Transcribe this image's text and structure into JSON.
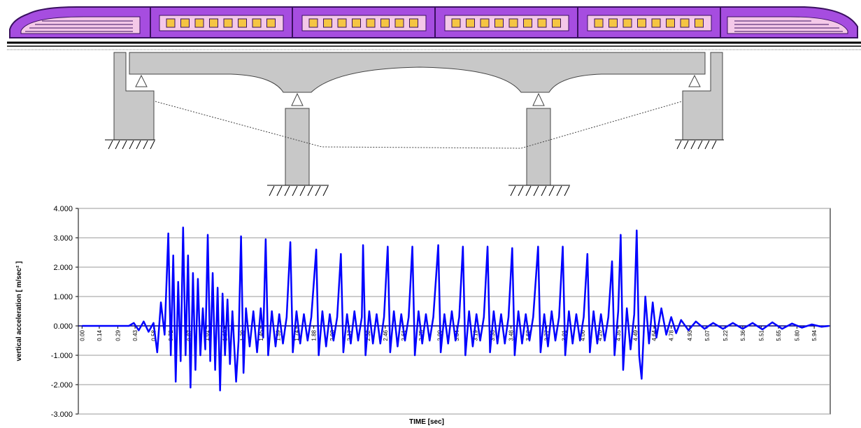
{
  "chart_data": {
    "type": "line",
    "x_label": "TIME [sec]",
    "y_label": "vertical acceleration [ m/sec² ]",
    "color": "#0000ff",
    "grid": true,
    "xlim": [
      -0.03,
      6.07
    ],
    "ylim": [
      -3,
      4
    ],
    "yticks": [
      {
        "value": -3,
        "label": "-3.000"
      },
      {
        "value": -2,
        "label": "-2.000"
      },
      {
        "value": -1,
        "label": "-1.000"
      },
      {
        "value": 0,
        "label": "0.000"
      },
      {
        "value": 1,
        "label": "1.000"
      },
      {
        "value": 2,
        "label": "2.000"
      },
      {
        "value": 3,
        "label": "3.000"
      },
      {
        "value": 4,
        "label": "4.000"
      }
    ],
    "xticks": [
      {
        "value": 0,
        "label": "0.00"
      },
      0.14,
      0.29,
      0.43,
      0.58,
      0.72,
      0.87,
      1.01,
      1.16,
      {
        "value": 1.3,
        "label": "1.30"
      },
      1.45,
      1.59,
      1.74,
      1.88,
      2.03,
      2.17,
      2.32,
      2.46,
      2.61,
      2.75,
      {
        "value": 2.9,
        "label": "2.90"
      },
      3.04,
      3.19,
      3.33,
      3.48,
      3.62,
      3.77,
      3.91,
      4.06,
      {
        "value": 4.2,
        "label": "4.20"
      },
      4.35,
      4.49,
      4.64,
      4.78,
      4.93,
      5.07,
      5.22,
      5.36,
      5.51,
      5.65,
      {
        "value": 5.8,
        "label": "5.80"
      },
      5.94
    ],
    "x": [
      0,
      0.1,
      0.2,
      0.3,
      0.38,
      0.42,
      0.46,
      0.5,
      0.54,
      0.58,
      0.61,
      0.64,
      0.67,
      0.7,
      0.72,
      0.74,
      0.76,
      0.78,
      0.8,
      0.82,
      0.84,
      0.86,
      0.88,
      0.9,
      0.92,
      0.94,
      0.96,
      0.98,
      1.0,
      1.02,
      1.04,
      1.06,
      1.08,
      1.1,
      1.12,
      1.14,
      1.16,
      1.18,
      1.2,
      1.22,
      1.25,
      1.27,
      1.29,
      1.31,
      1.33,
      1.36,
      1.39,
      1.42,
      1.45,
      1.47,
      1.49,
      1.51,
      1.54,
      1.57,
      1.6,
      1.63,
      1.66,
      1.69,
      1.71,
      1.74,
      1.77,
      1.8,
      1.83,
      1.86,
      1.9,
      1.92,
      1.95,
      1.98,
      2.01,
      2.04,
      2.07,
      2.1,
      2.12,
      2.15,
      2.18,
      2.21,
      2.24,
      2.27,
      2.28,
      2.3,
      2.33,
      2.36,
      2.39,
      2.42,
      2.45,
      2.48,
      2.5,
      2.53,
      2.56,
      2.59,
      2.62,
      2.65,
      2.68,
      2.7,
      2.73,
      2.76,
      2.79,
      2.82,
      2.85,
      2.89,
      2.91,
      2.94,
      2.97,
      3.0,
      3.03,
      3.06,
      3.09,
      3.11,
      3.14,
      3.17,
      3.2,
      3.23,
      3.26,
      3.29,
      3.31,
      3.34,
      3.37,
      3.4,
      3.43,
      3.46,
      3.49,
      3.51,
      3.54,
      3.57,
      3.6,
      3.63,
      3.66,
      3.7,
      3.72,
      3.75,
      3.78,
      3.81,
      3.84,
      3.87,
      3.9,
      3.92,
      3.95,
      3.98,
      4.01,
      4.04,
      4.07,
      4.1,
      4.12,
      4.15,
      4.18,
      4.21,
      4.24,
      4.27,
      4.3,
      4.32,
      4.35,
      4.37,
      4.39,
      4.42,
      4.45,
      4.48,
      4.5,
      4.52,
      4.54,
      4.57,
      4.6,
      4.63,
      4.66,
      4.7,
      4.74,
      4.78,
      4.82,
      4.86,
      4.92,
      4.98,
      5.05,
      5.12,
      5.2,
      5.28,
      5.36,
      5.44,
      5.52,
      5.6,
      5.68,
      5.76,
      5.84,
      5.92,
      6.0,
      6.06
    ],
    "values": [
      0,
      0,
      0,
      0,
      0,
      0.1,
      -0.15,
      0.15,
      -0.2,
      0.1,
      -0.9,
      0.8,
      -0.3,
      3.15,
      -1.0,
      2.4,
      -1.9,
      1.5,
      -1.2,
      3.35,
      -1.0,
      2.4,
      -2.1,
      1.8,
      -1.5,
      1.6,
      -1.0,
      0.6,
      -0.8,
      3.1,
      -1.2,
      1.8,
      -1.5,
      1.3,
      -2.2,
      1.1,
      -1.0,
      0.9,
      -1.3,
      0.5,
      -1.9,
      -0.5,
      3.05,
      -1.6,
      0.6,
      -0.7,
      0.5,
      -0.9,
      0.6,
      -0.4,
      2.95,
      -1.0,
      0.5,
      -0.7,
      0.4,
      -0.6,
      0.3,
      2.85,
      -0.9,
      0.5,
      -0.6,
      0.4,
      -0.5,
      0.3,
      2.6,
      -1.0,
      0.5,
      -0.7,
      0.4,
      -0.5,
      0.3,
      2.45,
      -0.9,
      0.4,
      -0.6,
      0.5,
      -0.5,
      0.3,
      2.75,
      -1.0,
      0.5,
      -0.6,
      0.4,
      -0.6,
      0.3,
      2.7,
      -0.9,
      0.5,
      -0.7,
      0.4,
      -0.5,
      0.3,
      2.7,
      -1.0,
      0.5,
      -0.6,
      0.4,
      -0.5,
      0.3,
      2.75,
      -0.9,
      0.4,
      -0.6,
      0.5,
      -0.5,
      0.3,
      2.7,
      -1.0,
      0.5,
      -0.7,
      0.4,
      -0.5,
      0.3,
      2.7,
      -0.9,
      0.5,
      -0.6,
      0.4,
      -0.6,
      0.3,
      2.65,
      -1.0,
      0.5,
      -0.6,
      0.4,
      -0.5,
      0.3,
      2.7,
      -0.9,
      0.4,
      -0.7,
      0.5,
      -0.5,
      0.3,
      2.7,
      -1.0,
      0.5,
      -0.6,
      0.4,
      -0.5,
      0.3,
      2.45,
      -0.9,
      0.5,
      -0.6,
      0.4,
      -0.5,
      0.3,
      2.2,
      -1.0,
      0.5,
      3.1,
      -1.5,
      0.6,
      -0.8,
      0.4,
      3.25,
      -1.0,
      -1.8,
      1.0,
      -0.6,
      0.8,
      -0.4,
      0.6,
      -0.3,
      0.3,
      -0.25,
      0.2,
      -0.15,
      0.15,
      -0.1,
      0.1,
      -0.1,
      0.1,
      -0.1,
      0.1,
      -0.12,
      0.12,
      -0.1,
      0.08,
      -0.06,
      0.05,
      -0.03,
      0
    ]
  }
}
